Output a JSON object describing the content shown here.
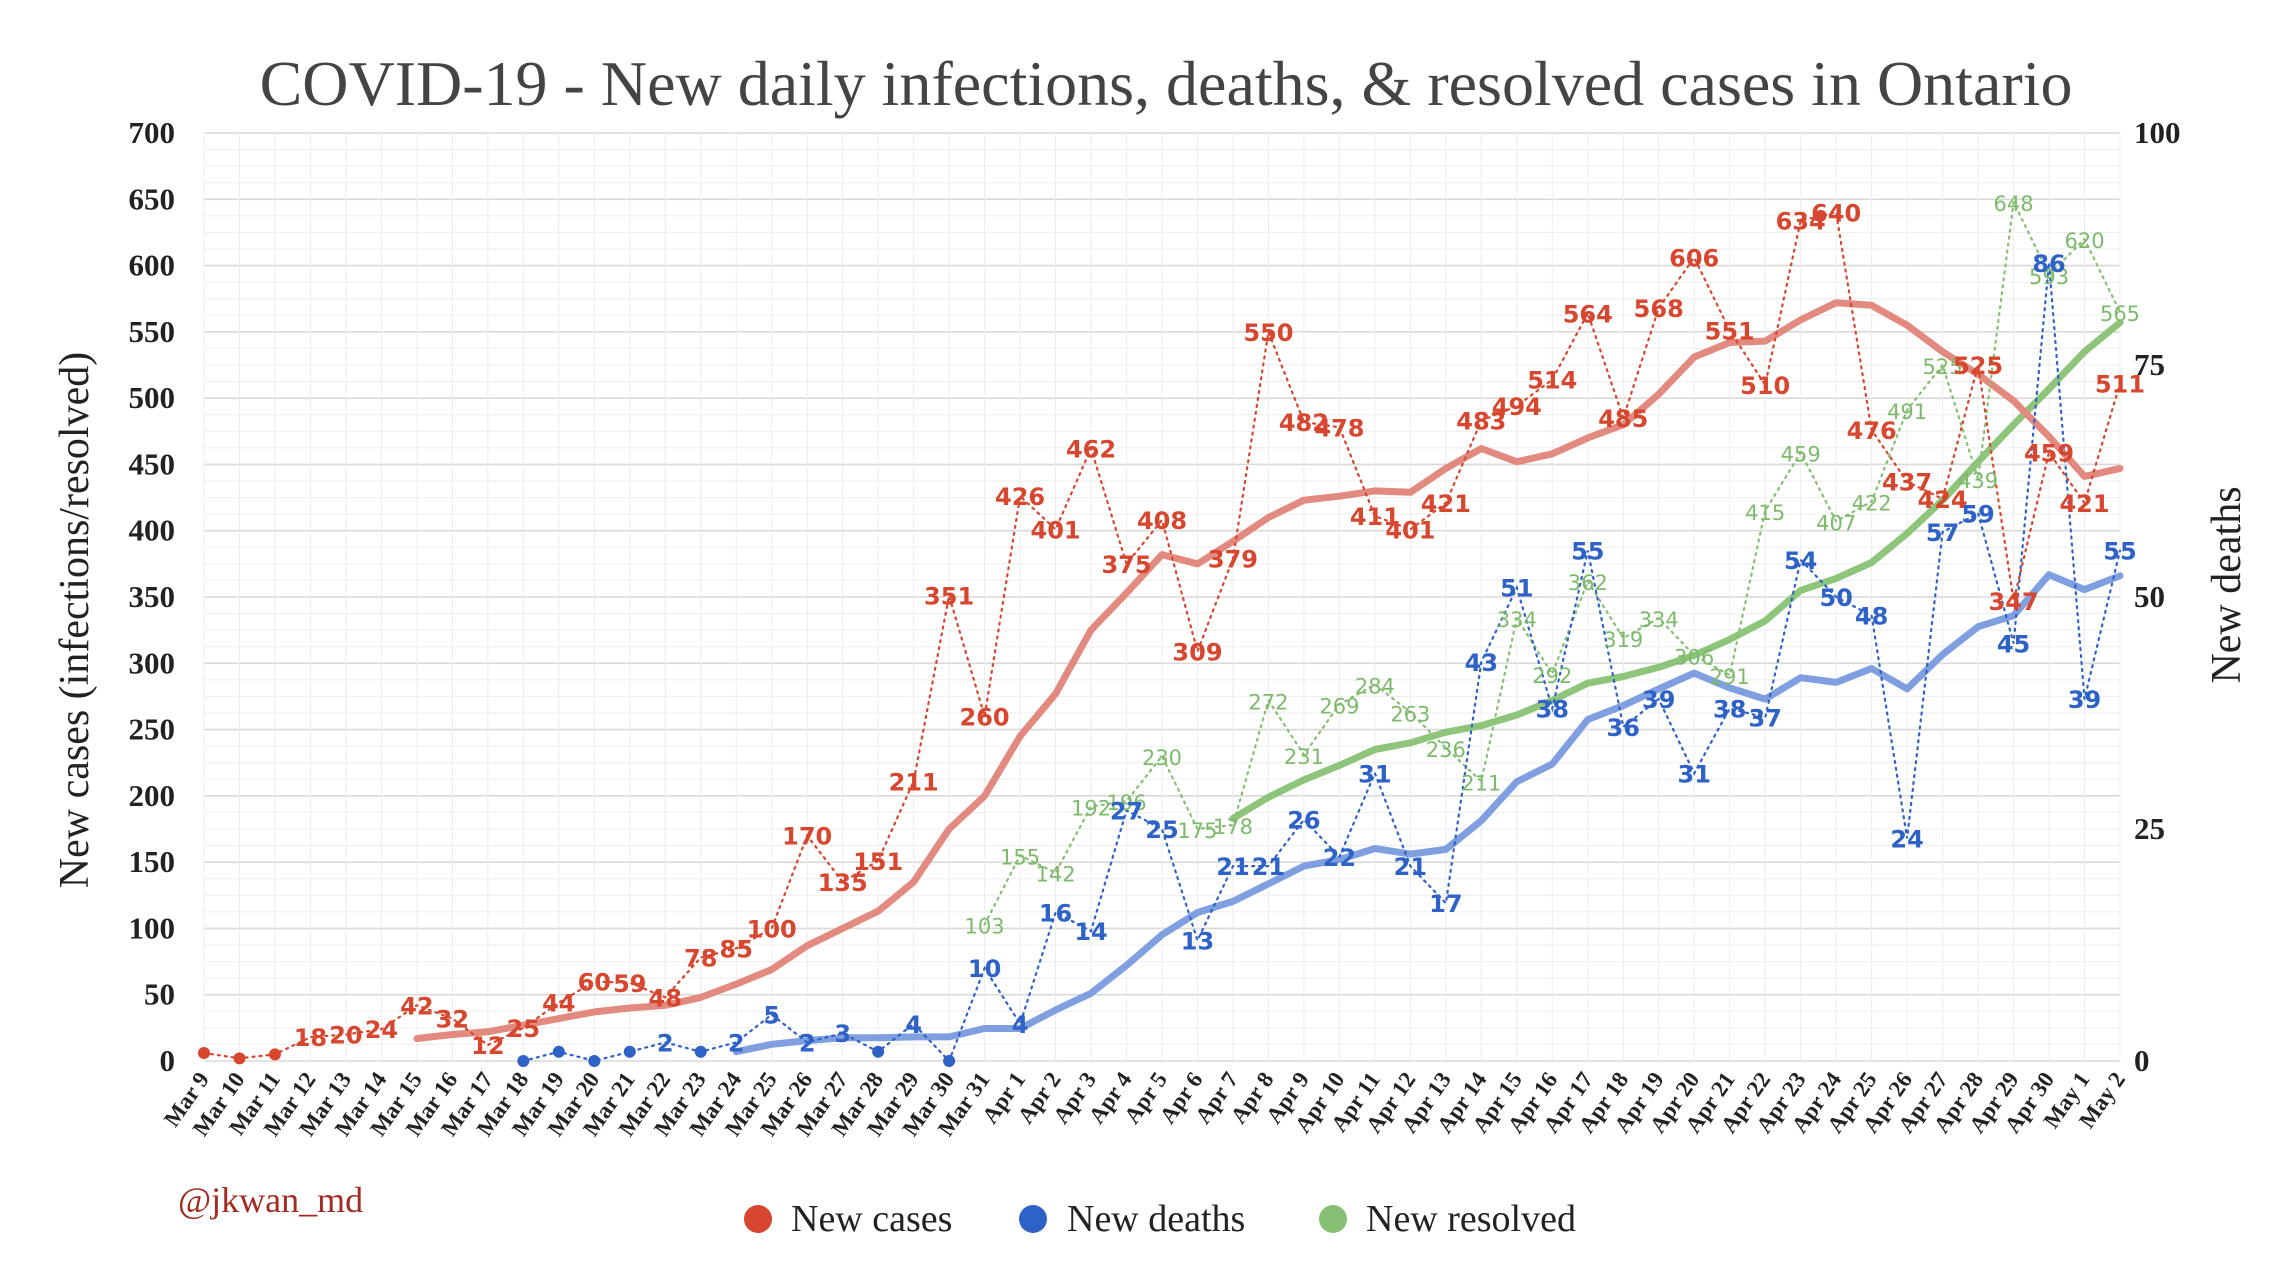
{
  "colors": {
    "cases": "#d7462e",
    "cases_trend": "#e38a80",
    "deaths": "#2e62c6",
    "deaths_trend": "#7f9fe0",
    "resolved": "#86bf73",
    "resolved_trend": "#8ec57b",
    "grid": "#e4e4e4",
    "credit": "#a22c22"
  },
  "credit": "@jkwan_md",
  "chart_data": {
    "type": "line",
    "title": "COVID-19 - New daily infections, deaths, & resolved cases in Ontario",
    "ylabel_left": "New cases (infections/resolved)",
    "ylabel_right": "New deaths",
    "ylim_left": [
      0,
      700
    ],
    "ylim_right": [
      0,
      100
    ],
    "yticks_left": [
      0,
      50,
      100,
      150,
      200,
      250,
      300,
      350,
      400,
      450,
      500,
      550,
      600,
      650,
      700
    ],
    "yticks_right": [
      0,
      25,
      50,
      75,
      100
    ],
    "grid": true,
    "legend_position": "bottom",
    "categories": [
      "Mar 9",
      "Mar 10",
      "Mar 11",
      "Mar 12",
      "Mar 13",
      "Mar 14",
      "Mar 15",
      "Mar 16",
      "Mar 17",
      "Mar 18",
      "Mar 19",
      "Mar 20",
      "Mar 21",
      "Mar 22",
      "Mar 23",
      "Mar 24",
      "Mar 25",
      "Mar 26",
      "Mar 27",
      "Mar 28",
      "Mar 29",
      "Mar 30",
      "Mar 31",
      "Apr 1",
      "Apr 2",
      "Apr 3",
      "Apr 4",
      "Apr 5",
      "Apr 6",
      "Apr 7",
      "Apr 8",
      "Apr 9",
      "Apr 10",
      "Apr 11",
      "Apr 12",
      "Apr 13",
      "Apr 14",
      "Apr 15",
      "Apr 16",
      "Apr 17",
      "Apr 18",
      "Apr 19",
      "Apr 20",
      "Apr 21",
      "Apr 22",
      "Apr 23",
      "Apr 24",
      "Apr 25",
      "Apr 26",
      "Apr 27",
      "Apr 28",
      "Apr 29",
      "Apr 30",
      "May 1",
      "May 2"
    ],
    "legend": [
      "New cases",
      "New deaths",
      "New resolved"
    ],
    "series": [
      {
        "name": "New cases",
        "axis": "left",
        "values": [
          6,
          2,
          5,
          18,
          20,
          24,
          42,
          32,
          12,
          25,
          44,
          60,
          59,
          48,
          78,
          85,
          100,
          170,
          135,
          151,
          211,
          351,
          260,
          426,
          401,
          462,
          375,
          408,
          309,
          379,
          550,
          482,
          478,
          411,
          401,
          421,
          483,
          494,
          514,
          564,
          485,
          568,
          606,
          551,
          510,
          634,
          640,
          476,
          437,
          424,
          525,
          347,
          459,
          421,
          511
        ],
        "labels": [
          null,
          null,
          null,
          "18",
          "20",
          "24",
          "42",
          "32",
          "12",
          "25",
          "44",
          "60",
          "59",
          "48",
          "78",
          "85",
          "100",
          "170",
          "135",
          "151",
          "211",
          "351",
          "260",
          "426",
          "401",
          "462",
          "375",
          "408",
          "309",
          "379",
          "550",
          "482",
          "478",
          "411",
          "401",
          "421",
          "483",
          "494",
          "514",
          "564",
          "485",
          "568",
          "606",
          "551",
          "510",
          "634",
          "640",
          "476",
          "437",
          "424",
          "525",
          "347",
          "459",
          "421",
          "511"
        ]
      },
      {
        "name": "New deaths",
        "axis": "right",
        "values": [
          null,
          null,
          null,
          null,
          null,
          null,
          null,
          null,
          null,
          0,
          1,
          0,
          1,
          2,
          1,
          2,
          5,
          2,
          3,
          1,
          4,
          0,
          10,
          4,
          16,
          14,
          27,
          25,
          13,
          21,
          21,
          26,
          22,
          31,
          21,
          17,
          43,
          51,
          38,
          55,
          36,
          39,
          31,
          38,
          37,
          54,
          50,
          48,
          24,
          57,
          59,
          45,
          86,
          39,
          55
        ],
        "labels": [
          null,
          null,
          null,
          null,
          null,
          null,
          null,
          null,
          null,
          null,
          null,
          null,
          null,
          "2",
          null,
          "2",
          "5",
          "2",
          "3",
          null,
          "4",
          null,
          "10",
          "4",
          "16",
          "14",
          "27",
          "25",
          "13",
          "21",
          "21",
          "26",
          "22",
          "31",
          "21",
          "17",
          "43",
          "51",
          "38",
          "55",
          "36",
          "39",
          "31",
          "38",
          "37",
          "54",
          "50",
          "48",
          "24",
          "57",
          "59",
          "45",
          "86",
          "39",
          "55"
        ]
      },
      {
        "name": "New resolved",
        "axis": "left",
        "values": [
          null,
          null,
          null,
          null,
          null,
          null,
          null,
          null,
          null,
          null,
          null,
          null,
          null,
          null,
          null,
          null,
          null,
          null,
          null,
          null,
          null,
          null,
          103,
          155,
          142,
          192,
          196,
          230,
          175,
          178,
          272,
          231,
          269,
          284,
          263,
          236,
          211,
          334,
          292,
          362,
          319,
          334,
          306,
          291,
          415,
          459,
          407,
          422,
          491,
          525,
          439,
          648,
          593,
          620,
          565
        ],
        "labels": [
          null,
          null,
          null,
          null,
          null,
          null,
          null,
          null,
          null,
          null,
          null,
          null,
          null,
          null,
          null,
          null,
          null,
          null,
          null,
          null,
          null,
          null,
          "103",
          "155",
          "142",
          "192",
          "196",
          "230",
          "175",
          "178",
          "272",
          "231",
          "269",
          "284",
          "263",
          "236",
          "211",
          "334",
          "292",
          "362",
          "319",
          "334",
          "306",
          "291",
          "415",
          "459",
          "407",
          "422",
          "491",
          "525",
          "439",
          "648",
          "593",
          "620",
          "565"
        ]
      },
      {
        "name": "New cases trend",
        "axis": "left",
        "values": [
          null,
          null,
          null,
          null,
          null,
          null,
          17,
          20,
          22,
          27,
          32,
          37,
          40,
          42,
          48,
          58,
          69,
          87,
          100,
          113,
          135,
          175,
          200,
          245,
          277,
          325,
          353,
          382,
          375,
          392,
          410,
          423,
          426,
          430,
          429,
          447,
          462,
          452,
          458,
          470,
          480,
          503,
          531,
          542,
          543,
          559,
          572,
          570,
          555,
          535,
          518,
          498,
          471,
          441,
          447
        ]
      },
      {
        "name": "New deaths trend",
        "axis": "right",
        "values": [
          null,
          null,
          null,
          null,
          null,
          null,
          null,
          null,
          null,
          null,
          null,
          null,
          null,
          null,
          null,
          1.0,
          1.8,
          2.2,
          2.5,
          2.5,
          2.6,
          2.6,
          3.5,
          3.5,
          5.5,
          7.3,
          10.3,
          13.6,
          16.0,
          17.2,
          19.1,
          21.0,
          21.7,
          22.9,
          22.3,
          22.8,
          25.9,
          30.1,
          32.0,
          36.8,
          38.3,
          40.1,
          41.8,
          40.2,
          39.0,
          41.3,
          40.8,
          42.3,
          40.1,
          43.8,
          46.8,
          48.0,
          52.4,
          50.8,
          52.3
        ]
      },
      {
        "name": "New resolved trend",
        "axis": "left",
        "values": [
          null,
          null,
          null,
          null,
          null,
          null,
          null,
          null,
          null,
          null,
          null,
          null,
          null,
          null,
          null,
          null,
          null,
          null,
          null,
          null,
          null,
          null,
          null,
          null,
          null,
          null,
          null,
          null,
          null,
          183,
          199,
          212,
          223,
          235,
          240,
          248,
          253,
          261,
          272,
          285,
          290,
          297,
          306,
          318,
          332,
          355,
          364,
          376,
          398,
          423,
          452,
          480,
          507,
          535,
          557
        ]
      }
    ]
  }
}
